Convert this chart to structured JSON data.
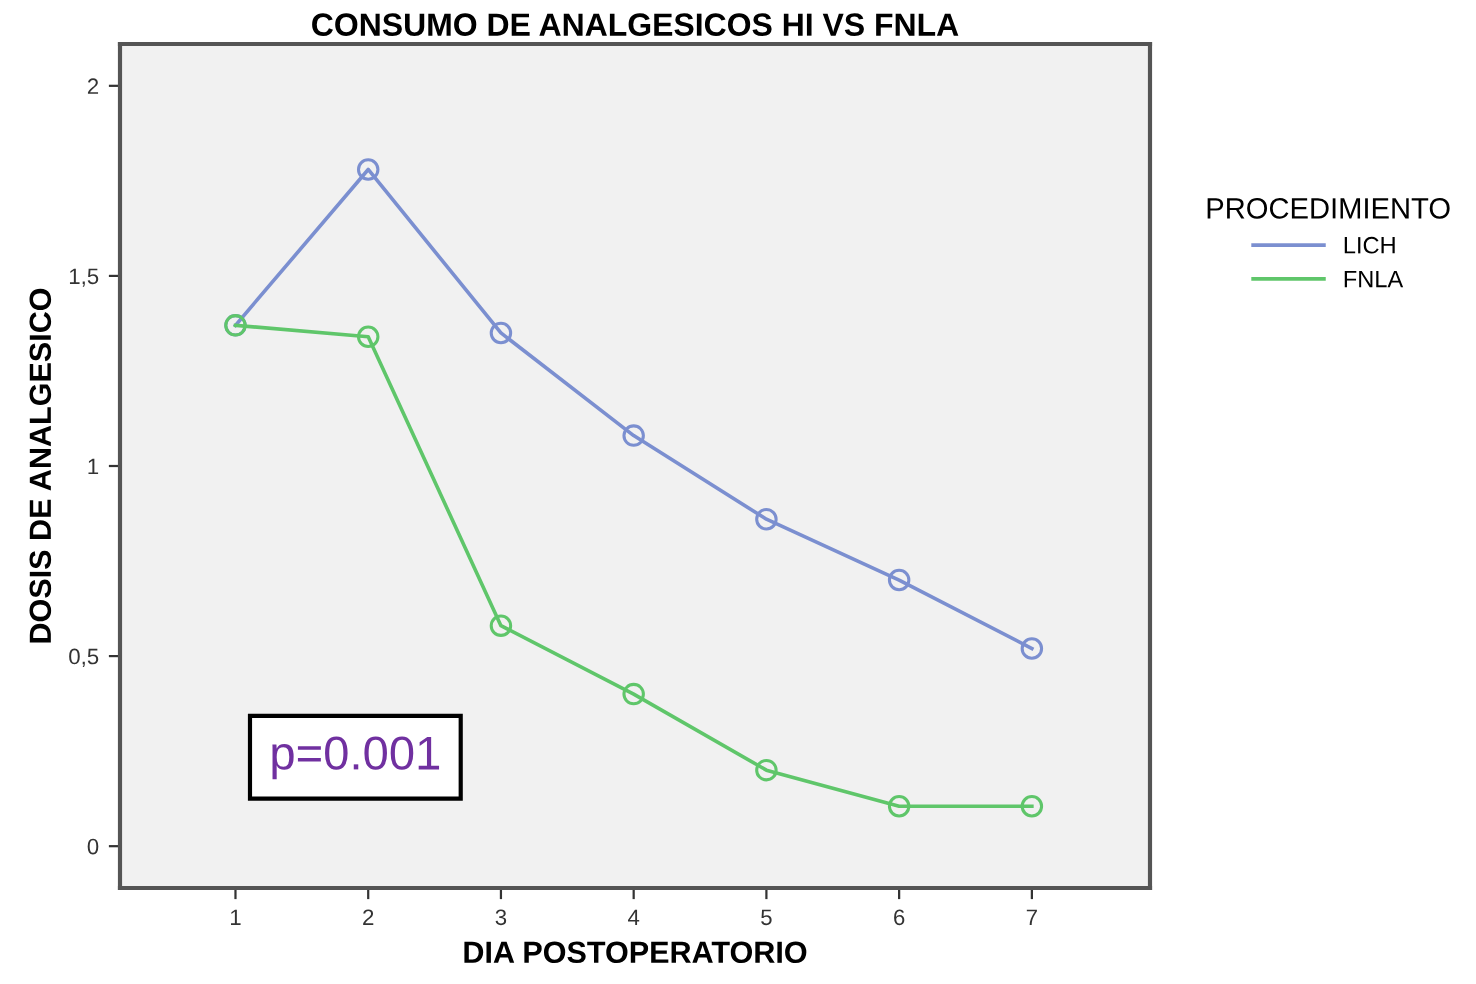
{
  "chart_data": {
    "type": "line",
    "title": "CONSUMO DE ANALGESICOS HI VS FNLA",
    "xlabel": "DIA POSTOPERATORIO",
    "ylabel": "DOSIS DE ANALGESICO",
    "legend_title": "PROCEDIMIENTO",
    "legend": "right",
    "marker": "circle",
    "grid": false,
    "x": [
      1,
      2,
      3,
      4,
      5,
      6,
      7
    ],
    "xlim": [
      0.13,
      7.89
    ],
    "xticks": [
      1,
      2,
      3,
      4,
      5,
      6,
      7
    ],
    "ylim": [
      -0.11,
      2.11
    ],
    "yticks": [
      {
        "value": 0,
        "label": "0"
      },
      {
        "value": 0.5,
        "label": "0,5"
      },
      {
        "value": 1,
        "label": "1"
      },
      {
        "value": 1.5,
        "label": "1,5"
      },
      {
        "value": 2,
        "label": "2"
      }
    ],
    "series": [
      {
        "name": "LICH",
        "color": "#7b8fd0",
        "values": [
          1.37,
          1.78,
          1.35,
          1.08,
          0.86,
          0.7,
          0.52
        ]
      },
      {
        "name": "FNLA",
        "color": "#5fc66a",
        "values": [
          1.37,
          1.34,
          0.58,
          0.4,
          0.2,
          0.105,
          0.105
        ]
      }
    ],
    "annotations": [
      "p=0.001"
    ]
  }
}
